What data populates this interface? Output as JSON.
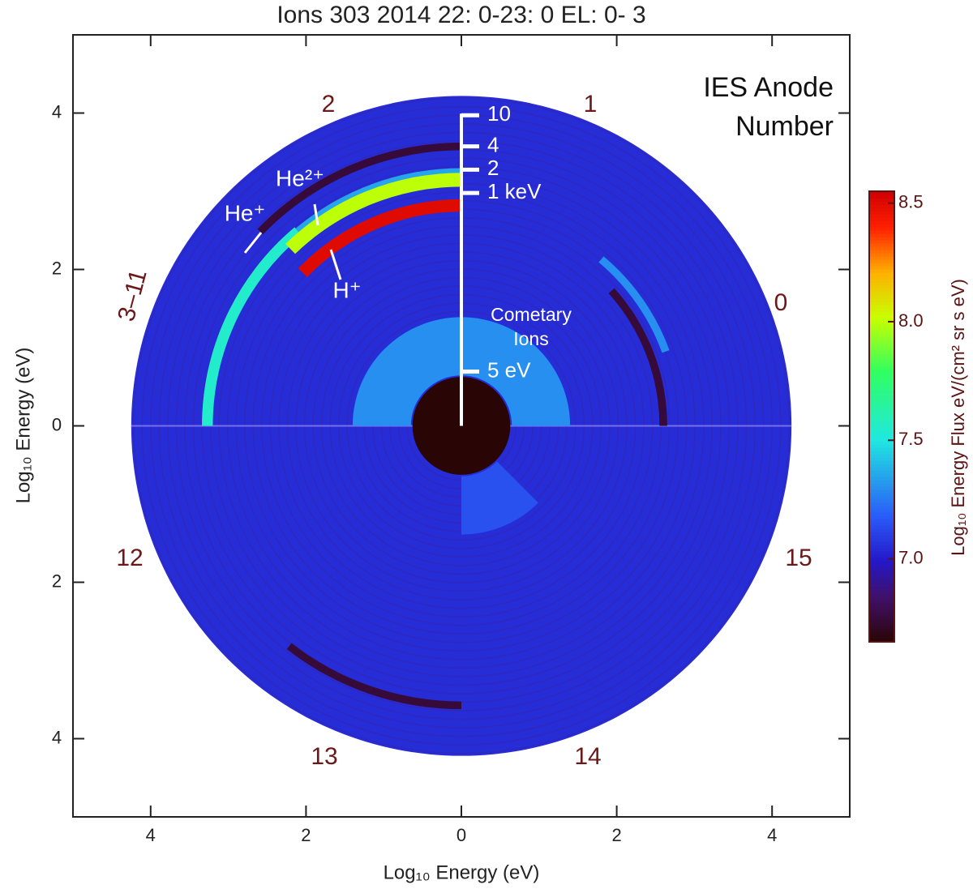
{
  "chart_data": {
    "type": "polar_spectrogram",
    "title": "Ions 303 2014 22: 0-23: 0 EL: 0- 3",
    "xlabel": "Log₁₀ Energy (eV)",
    "ylabel": "Log₁₀ Energy (eV)",
    "xlim": [
      -5,
      5
    ],
    "ylim": [
      -5,
      5
    ],
    "xticks": [
      {
        "value": -4,
        "label": "4"
      },
      {
        "value": -2,
        "label": "2"
      },
      0,
      2,
      4
    ],
    "yticks": [
      {
        "value": -4,
        "label": "4"
      },
      {
        "value": -2,
        "label": "2"
      },
      0,
      2,
      4
    ],
    "colorbar_label": "Log₁₀ Energy Flux eV/(cm² sr s eV)",
    "clim": [
      6.65,
      8.55
    ],
    "cticks": [
      {
        "value": 7,
        "label": "7.0"
      },
      7.5,
      {
        "value": 8,
        "label": "8.0"
      },
      8.5
    ],
    "sectors": [
      {
        "r0": 0,
        "r1": 4.25,
        "a0": 0,
        "a1": 360,
        "flux": 7.05
      },
      {
        "r0": 3.55,
        "r1": 3.65,
        "a0": 90,
        "a1": 136,
        "flux": 6.75
      },
      {
        "r0": 3.2,
        "r1": 3.34,
        "a0": 130,
        "a1": 180,
        "flux": 7.55
      },
      {
        "r0": 3.22,
        "r1": 3.32,
        "a0": 90,
        "a1": 130,
        "flux": 7.35
      },
      {
        "r0": 3.08,
        "r1": 3.26,
        "a0": 90,
        "a1": 134,
        "flux": 8.0
      },
      {
        "r0": 2.76,
        "r1": 2.92,
        "a0": 90,
        "a1": 136,
        "flux": 8.5
      },
      {
        "r0": 2.55,
        "r1": 2.65,
        "a0": 0,
        "a1": 42,
        "flux": 6.75
      },
      {
        "r0": 2.75,
        "r1": 2.85,
        "a0": 20,
        "a1": 50,
        "flux": 7.3
      },
      {
        "r0": 3.55,
        "r1": 3.65,
        "a0": 232,
        "a1": 270,
        "flux": 6.75
      },
      {
        "r0": 0.65,
        "r1": 1.4,
        "a0": 0,
        "a1": 180,
        "flux": 7.3
      },
      {
        "r0": 0.65,
        "r1": 1.4,
        "a0": 270,
        "a1": 315,
        "flux": 7.15
      },
      {
        "r0": 0,
        "r1": 0.63,
        "a0": 0,
        "a1": 360,
        "flux": 6.65
      }
    ],
    "anode_labels": [
      "2",
      "1",
      "0",
      "3–11",
      "12",
      "15",
      "13",
      "14"
    ],
    "energy_scale": [
      {
        "value": 4,
        "label": "10"
      },
      {
        "value": 3.6,
        "label": "4"
      },
      {
        "value": 3.3,
        "label": "2"
      },
      {
        "value": 3,
        "label": "1 keV"
      },
      {
        "value": 0.7,
        "label": "5 eV"
      }
    ],
    "annotations": [
      "He²⁺",
      "He⁺",
      "H⁺"
    ],
    "cometary_label": [
      "Cometary",
      "Ions"
    ],
    "legend_title": [
      "IES Anode",
      "Number"
    ]
  }
}
